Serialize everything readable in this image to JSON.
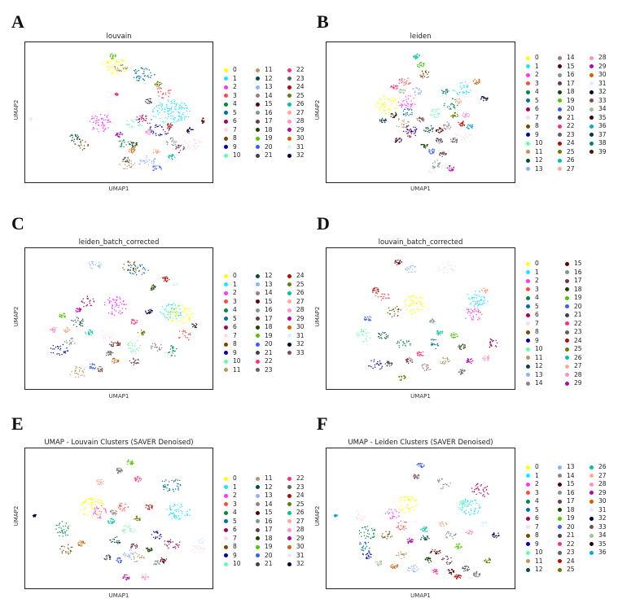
{
  "panels": [
    {
      "letter": "A",
      "title": "louvain",
      "xlabel": "UMAP1",
      "ylabel": "UMAP2",
      "n": 33,
      "legend_cols": 3,
      "per_col": 11
    },
    {
      "letter": "B",
      "title": "leiden",
      "xlabel": "UMAP1",
      "ylabel": "UMAP2",
      "n": 40,
      "legend_cols": 3,
      "per_col": 14
    },
    {
      "letter": "C",
      "title": "leiden_batch_corrected",
      "xlabel": "UMAP1",
      "ylabel": "UMAP2",
      "n": 34,
      "legend_cols": 3,
      "per_col": 12
    },
    {
      "letter": "D",
      "title": "louvain_batch_corrected",
      "xlabel": "UMAP1",
      "ylabel": "UMAP2",
      "n": 30,
      "legend_cols": 2,
      "per_col": 15
    },
    {
      "letter": "E",
      "title": "UMAP - Louvain Clusters (SAVER Denoised)",
      "xlabel": "UMAP1",
      "ylabel": "UMAP2",
      "n": 33,
      "legend_cols": 3,
      "per_col": 11
    },
    {
      "letter": "F",
      "title": "UMAP - Leiden Clusters (SAVER Denoised)",
      "xlabel": "UMAP1",
      "ylabel": "UMAP2",
      "n": 37,
      "legend_cols": 3,
      "per_col": 13
    }
  ],
  "chart_data": [
    {
      "type": "scatter",
      "title": "louvain",
      "xlabel": "UMAP1",
      "ylabel": "UMAP2",
      "legend_placement": "right",
      "series": [
        "0",
        "1",
        "2",
        "3",
        "4",
        "5",
        "6",
        "7",
        "8",
        "9",
        "10",
        "11",
        "12",
        "13",
        "14",
        "15",
        "16",
        "17",
        "18",
        "19",
        "20",
        "21",
        "22",
        "23",
        "24",
        "25",
        "26",
        "27",
        "28",
        "29",
        "30",
        "31",
        "32"
      ]
    },
    {
      "type": "scatter",
      "title": "leiden",
      "xlabel": "UMAP1",
      "ylabel": "UMAP2",
      "legend_placement": "right",
      "series": [
        "0",
        "1",
        "2",
        "3",
        "4",
        "5",
        "6",
        "7",
        "8",
        "9",
        "10",
        "11",
        "12",
        "13",
        "14",
        "15",
        "16",
        "17",
        "18",
        "19",
        "20",
        "21",
        "22",
        "23",
        "24",
        "25",
        "26",
        "27",
        "28",
        "29",
        "30",
        "31",
        "32",
        "33",
        "34",
        "35",
        "36",
        "37",
        "38",
        "39"
      ]
    },
    {
      "type": "scatter",
      "title": "leiden_batch_corrected",
      "xlabel": "UMAP1",
      "ylabel": "UMAP2",
      "legend_placement": "right",
      "series": [
        "0",
        "1",
        "2",
        "3",
        "4",
        "5",
        "6",
        "7",
        "8",
        "9",
        "10",
        "11",
        "12",
        "13",
        "14",
        "15",
        "16",
        "17",
        "18",
        "19",
        "20",
        "21",
        "22",
        "23",
        "24",
        "25",
        "26",
        "27",
        "28",
        "29",
        "30",
        "31",
        "32",
        "33"
      ]
    },
    {
      "type": "scatter",
      "title": "louvain_batch_corrected",
      "xlabel": "UMAP1",
      "ylabel": "UMAP2",
      "legend_placement": "right",
      "series": [
        "0",
        "1",
        "2",
        "3",
        "4",
        "5",
        "6",
        "7",
        "8",
        "9",
        "10",
        "11",
        "12",
        "13",
        "14",
        "15",
        "16",
        "17",
        "18",
        "19",
        "20",
        "21",
        "22",
        "23",
        "24",
        "25",
        "26",
        "27",
        "28",
        "29"
      ]
    },
    {
      "type": "scatter",
      "title": "UMAP - Louvain Clusters (SAVER Denoised)",
      "xlabel": "UMAP1",
      "ylabel": "UMAP2",
      "legend_placement": "right",
      "series": [
        "0",
        "1",
        "2",
        "3",
        "4",
        "5",
        "6",
        "7",
        "8",
        "9",
        "10",
        "11",
        "12",
        "13",
        "14",
        "15",
        "16",
        "17",
        "18",
        "19",
        "20",
        "21",
        "22",
        "23",
        "24",
        "25",
        "26",
        "27",
        "28",
        "29",
        "30",
        "31",
        "32"
      ]
    },
    {
      "type": "scatter",
      "title": "UMAP - Leiden Clusters (SAVER Denoised)",
      "xlabel": "UMAP1",
      "ylabel": "UMAP2",
      "legend_placement": "right",
      "series": [
        "0",
        "1",
        "2",
        "3",
        "4",
        "5",
        "6",
        "7",
        "8",
        "9",
        "10",
        "11",
        "12",
        "13",
        "14",
        "15",
        "16",
        "17",
        "18",
        "19",
        "20",
        "21",
        "22",
        "23",
        "24",
        "25",
        "26",
        "27",
        "28",
        "29",
        "30",
        "31",
        "32",
        "33",
        "34",
        "35",
        "36"
      ]
    }
  ],
  "palette": [
    "#ffff00",
    "#1ce6ff",
    "#ff34ff",
    "#ff4a46",
    "#008941",
    "#006fa6",
    "#a30059",
    "#ffdbe5",
    "#7a4900",
    "#0000a6",
    "#63ffac",
    "#b79762",
    "#004d43",
    "#8fb0ff",
    "#997d87",
    "#5a0007",
    "#809693",
    "#6a3a4c",
    "#1b4400",
    "#4fc601",
    "#3b5dff",
    "#4a3b53",
    "#ff2f80",
    "#61615a",
    "#ba0900",
    "#6b7900",
    "#00c2a0",
    "#ffaa92",
    "#ff90c9",
    "#b903aa",
    "#d16100",
    "#ddefff",
    "#000035",
    "#7b4f4b",
    "#a1c299",
    "#300018",
    "#0aa6d8",
    "#013349",
    "#00846f",
    "#372101"
  ]
}
